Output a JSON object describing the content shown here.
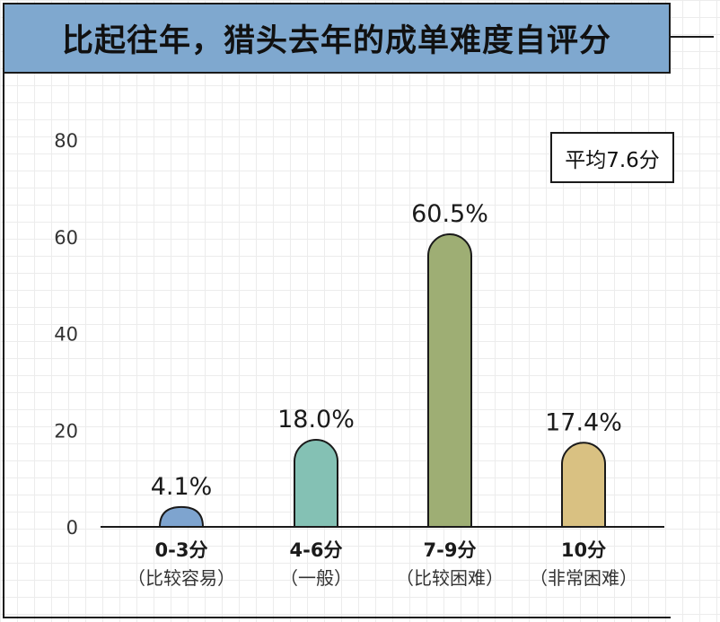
{
  "title": "比起往年，猎头去年的成单难度自评分",
  "average_label": "平均7.6分",
  "chart_data": {
    "type": "bar",
    "title": "比起往年，猎头去年的成单难度自评分",
    "categories": [
      "0-3分",
      "4-6分",
      "7-9分",
      "10分"
    ],
    "category_notes": [
      "（比较容易）",
      "（一般）",
      "（比较困难）",
      "（非常困难）"
    ],
    "values": [
      4.1,
      18.0,
      60.5,
      17.4
    ],
    "value_labels": [
      "4.1%",
      "18.0%",
      "60.5%",
      "17.4%"
    ],
    "bar_colors": [
      "#7ea4cf",
      "#84c1b4",
      "#9eae74",
      "#d9c182"
    ],
    "yticks": [
      0,
      20,
      40,
      60,
      80
    ],
    "ylim": [
      0,
      80
    ],
    "grid": true,
    "legend": "none"
  }
}
